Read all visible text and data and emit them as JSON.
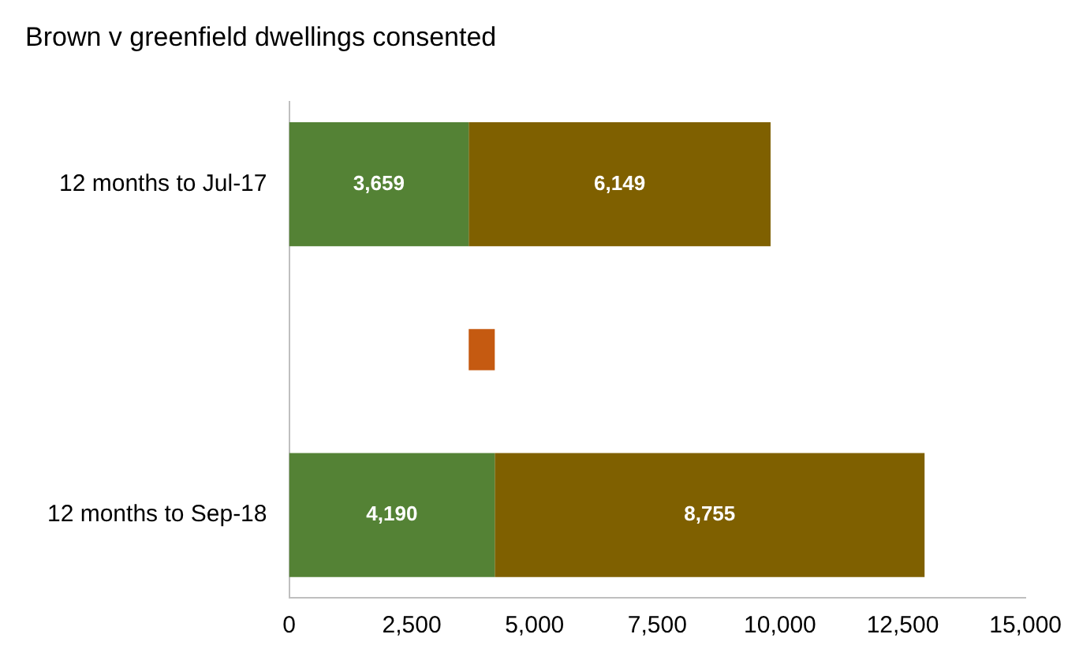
{
  "chart_data": {
    "type": "bar",
    "orientation": "horizontal",
    "stacked": true,
    "title": "Brown v greenfield dwellings consented",
    "categories": [
      "12 months to Jul-17",
      null,
      "12 months to Sep-18"
    ],
    "series": [
      {
        "color": "#548235",
        "values": [
          3659,
          null,
          4190
        ],
        "value_labels": [
          "3,659",
          null,
          "4,190"
        ]
      },
      {
        "color": "#7f6000",
        "values": [
          6149,
          null,
          8755
        ],
        "value_labels": [
          "6,149",
          null,
          "8,755"
        ]
      },
      {
        "color": "#c55a11",
        "values": [
          null,
          531,
          null
        ],
        "base": [
          null,
          3659,
          null
        ]
      }
    ],
    "xlim": [
      0,
      15000
    ],
    "xticks": [
      {
        "value": 0,
        "label": "0"
      },
      {
        "value": 2500,
        "label": "2,500"
      },
      {
        "value": 5000,
        "label": "5,000"
      },
      {
        "value": 7500,
        "label": "7,500"
      },
      {
        "value": 10000,
        "label": "10,000"
      },
      {
        "value": 12500,
        "label": "12,500"
      },
      {
        "value": 15000,
        "label": "15,000"
      }
    ],
    "grid": false,
    "legend": false
  }
}
